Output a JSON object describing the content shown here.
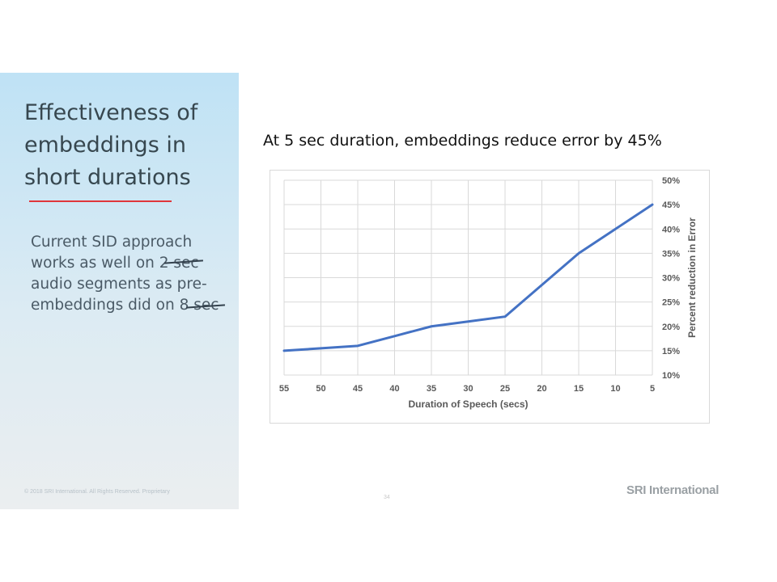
{
  "slide": {
    "title": "Effectiveness of embeddings in short durations",
    "body": "Current SID approach works as well on 2 sec audio segments as pre-embeddings did on 8 sec",
    "footer": "© 2018 SRI International. All Rights Reserved. Proprietary",
    "page_number": "34",
    "brand": "SRI International",
    "chart_heading": "At 5 sec duration, embeddings reduce error by 45%"
  },
  "colors": {
    "line": "#4472c4",
    "accent_rule": "#e0363a",
    "panel_top": "#bfe2f5",
    "panel_bottom": "#ebeef0"
  },
  "chart_data": {
    "type": "line",
    "x": [
      55,
      50,
      45,
      40,
      35,
      30,
      25,
      20,
      15,
      10,
      5
    ],
    "x_tick_labels": [
      "55",
      "50",
      "45",
      "40",
      "35",
      "30",
      "25",
      "20",
      "15",
      "10",
      "5"
    ],
    "series": [
      {
        "values": [
          15,
          15.5,
          16,
          18,
          20,
          21,
          22,
          28.5,
          35,
          40,
          45
        ]
      }
    ],
    "y_ticks": [
      10,
      15,
      20,
      25,
      30,
      35,
      40,
      45,
      50
    ],
    "y_tick_labels": [
      "10%",
      "15%",
      "20%",
      "25%",
      "30%",
      "35%",
      "40%",
      "45%",
      "50%"
    ],
    "xlabel": "Duration of Speech (secs)",
    "ylabel": "Percent reduction in Error",
    "ylim": [
      10,
      50
    ],
    "y_axis_side": "right",
    "grid": true,
    "legend": false
  }
}
